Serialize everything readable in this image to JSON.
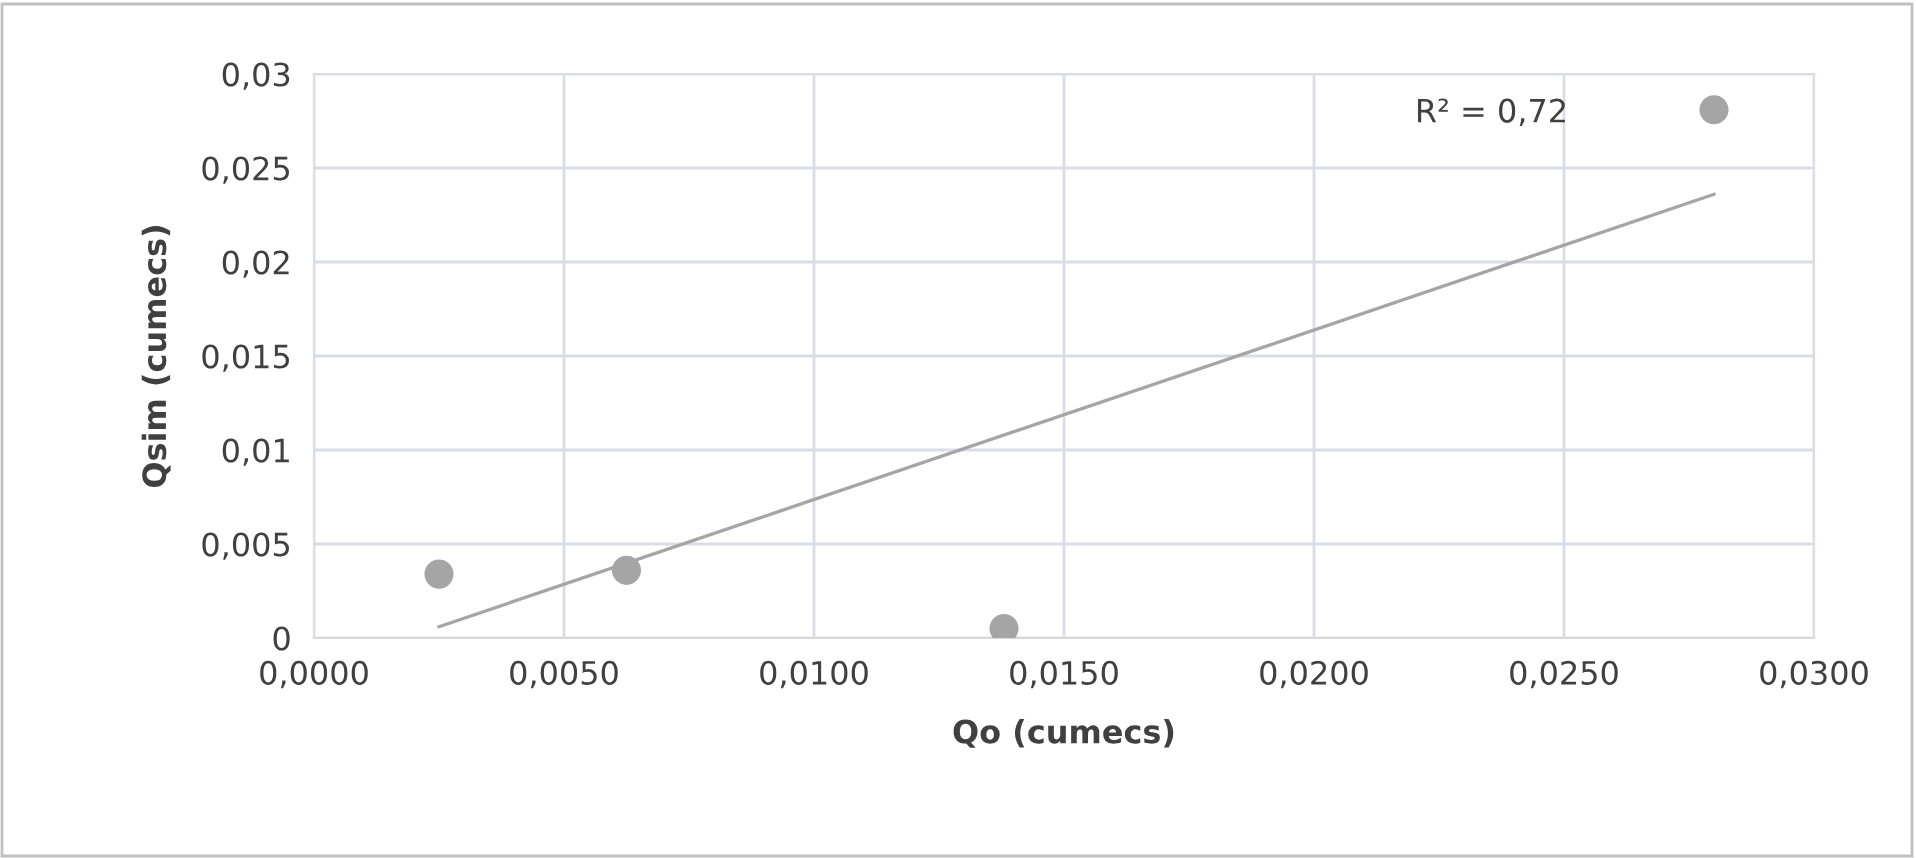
{
  "chart_data": {
    "type": "scatter",
    "xlabel": "Qo (cumecs)",
    "ylabel": "Qsim (cumecs)",
    "series": [
      {
        "color": "#a5a5a5",
        "x": [
          0.0025,
          0.00625,
          0.0138,
          0.028
        ],
        "values": [
          0.0034,
          0.0036,
          0.0005,
          0.0281
        ],
        "marker": "circle"
      },
      {
        "type": "line",
        "color": "#a5a5a5",
        "x": [
          0.0025,
          0.028
        ],
        "values": [
          0.0006,
          0.0236
        ],
        "line_style": "solid"
      }
    ],
    "annotations": [
      "R² = 0,72"
    ],
    "xlim": [
      0,
      0.03
    ],
    "ylim": [
      0,
      0.03
    ],
    "xticks": [
      {
        "value": 0,
        "label": "0,0000"
      },
      {
        "value": 0.005,
        "label": "0,0050"
      },
      {
        "value": 0.01,
        "label": "0,0100"
      },
      {
        "value": 0.015,
        "label": "0,0150"
      },
      {
        "value": 0.02,
        "label": "0,0200"
      },
      {
        "value": 0.025,
        "label": "0,0250"
      },
      {
        "value": 0.03,
        "label": "0,0300"
      }
    ],
    "yticks": [
      {
        "value": 0,
        "label": "0"
      },
      {
        "value": 0.005,
        "label": "0,005"
      },
      {
        "value": 0.01,
        "label": "0,01"
      },
      {
        "value": 0.015,
        "label": "0,015"
      },
      {
        "value": 0.02,
        "label": "0,02"
      },
      {
        "value": 0.025,
        "label": "0,025"
      },
      {
        "value": 0.03,
        "label": "0,03"
      }
    ],
    "grid": true,
    "legend": false
  }
}
